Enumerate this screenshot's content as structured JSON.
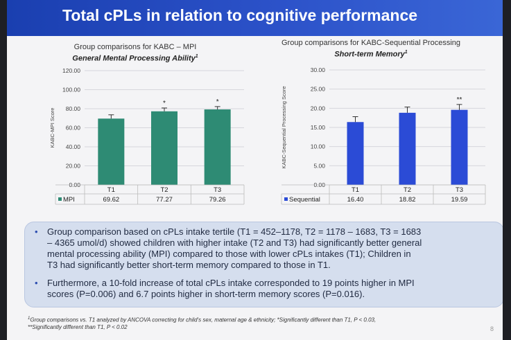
{
  "slide": {
    "title": "Total cPLs in relation to cognitive performance",
    "page_number": "8"
  },
  "charts": [
    {
      "heading": "Group comparisons for KABC – MPI",
      "subheading": "General Mental Processing Ability",
      "sup": "1"
    },
    {
      "heading": "Group comparisons for KABC-Sequential Processing",
      "subheading": "Short-term Memory",
      "sup": "1"
    }
  ],
  "chart_data": [
    {
      "type": "bar",
      "title": "Group comparisons for KABC – MPI",
      "subtitle": "General Mental Processing Ability",
      "ylabel": "KABC-MPI Score",
      "xlabel": "",
      "categories": [
        "T1",
        "T2",
        "T3"
      ],
      "series": [
        {
          "name": "MPI",
          "values": [
            69.62,
            77.27,
            79.26
          ]
        }
      ],
      "table_values": [
        "69.62",
        "77.27",
        "79.26"
      ],
      "error": [
        4,
        3.5,
        3
      ],
      "significance": [
        "",
        "*",
        "*"
      ],
      "ylim": [
        0,
        120
      ],
      "yticks": [
        "0.00",
        "20.00",
        "40.00",
        "60.00",
        "80.00",
        "100.00",
        "120.00"
      ],
      "grid": true,
      "legend": "data-table-bottom",
      "color": "#2e8b74"
    },
    {
      "type": "bar",
      "title": "Group comparisons for KABC-Sequential Processing",
      "subtitle": "Short-term Memory",
      "ylabel": "KABC-Sequential Processing Score",
      "xlabel": "",
      "categories": [
        "T1",
        "T2",
        "T3"
      ],
      "series": [
        {
          "name": "Sequential",
          "values": [
            16.4,
            18.82,
            19.59
          ]
        }
      ],
      "table_values": [
        "16.40",
        "18.82",
        "19.59"
      ],
      "error": [
        1.4,
        1.5,
        1.4
      ],
      "significance": [
        "",
        "",
        "**"
      ],
      "ylim": [
        0,
        30
      ],
      "yticks": [
        "0.00",
        "5.00",
        "10.00",
        "15.00",
        "20.00",
        "25.00",
        "30.00"
      ],
      "grid": true,
      "legend": "data-table-bottom",
      "color": "#2b4bd6"
    }
  ],
  "bullets": [
    {
      "lines": [
        "Group comparison based on cPLs intake tertile (T1 = 452–1178, T2 = 1178 – 1683, T3 = 1683",
        "– 4365 umol/d) showed children with higher intake (T2 and T3) had significantly better general",
        "mental processing ability (MPI) compared to those with lower cPLs intakes (T1); Children in",
        "T3 had significantly better short-term memory compared to those in T1."
      ]
    },
    {
      "lines": [
        "Furthermore, a 10-fold increase of total cPLs intake corresponded to 19 points higher in MPI",
        "scores (P=0.006) and 6.7 points higher in short-term memory scores (P=0.016)."
      ]
    }
  ],
  "footnote": {
    "sup": "1",
    "line1": "Group comparisons vs. T1 analyzed by ANCOVA correcting for child's sex, maternal age & ethnicity; *Significantly different than T1, P < 0.03,",
    "line2": "**Significantly different than T1, P < 0.02"
  }
}
